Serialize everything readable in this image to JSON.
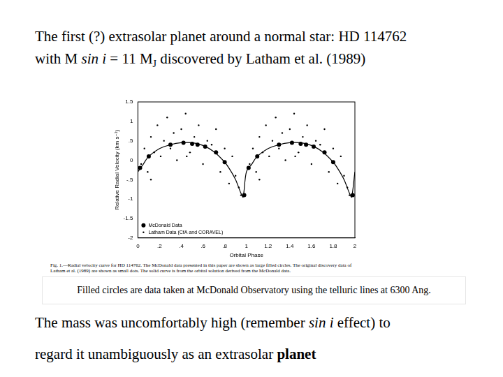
{
  "slide": {
    "title": [
      [
        {
          "text": "The first (?) extrasolar planet around a normal star: HD 114762"
        }
      ],
      [
        {
          "text": "with M "
        },
        {
          "text": "sin i",
          "style": "italic"
        },
        {
          "text": " = 11 M"
        },
        {
          "text": "J",
          "style": "subscript"
        },
        {
          "text": " discovered by Latham et al. (1989)"
        }
      ]
    ],
    "figure_caption": "Fig. 1.—Radial velocity curve for HD 114762. The McDonald data presented in this paper are shown as large filled circles. The original discovery data of Latham et al. (1989) are shown as small dots. The solid curve is from the orbital solution derived from the McDonald data.",
    "note": "Filled circles are data taken at McDonald Observatory using the telluric lines at 6300 Ang.",
    "body": [
      [
        {
          "text": "The mass was uncomfortably high (remember "
        },
        {
          "text": "sin i",
          "style": "italic"
        },
        {
          "text": " effect) to"
        }
      ],
      [
        {
          "text": "regard it unambiguously as an extrasolar "
        },
        {
          "text": "planet",
          "style": "bold"
        }
      ]
    ]
  },
  "chart_data": {
    "type": "scatter",
    "x_label": "Orbital Phase",
    "y_label": "Relative Radial Velocity (km s⁻¹)",
    "xlim": [
      0,
      2
    ],
    "xticks": [
      0,
      {
        "value": 0.2,
        "label": ".2"
      },
      {
        "value": 0.4,
        "label": ".4"
      },
      {
        "value": 0.6,
        "label": ".6"
      },
      {
        "value": 0.8,
        "label": ".8"
      },
      1,
      {
        "value": 1.2,
        "label": "1.2"
      },
      {
        "value": 1.4,
        "label": "1.4"
      },
      {
        "value": 1.6,
        "label": "1.6"
      },
      {
        "value": 1.8,
        "label": "1.8"
      },
      2
    ],
    "ylim": [
      -2,
      1.5
    ],
    "yticks": [
      {
        "value": -2,
        "label": "-2"
      },
      {
        "value": -1.5,
        "label": "-1.5"
      },
      {
        "value": -1,
        "label": "-1"
      },
      {
        "value": -0.5,
        "label": "-.5"
      },
      0,
      {
        "value": 0.5,
        "label": ".5"
      },
      1,
      {
        "value": 1.5,
        "label": "1.5"
      }
    ],
    "grid": false,
    "legend": "lower left",
    "series": [
      {
        "type": "line",
        "color": "#000000",
        "marker": "none",
        "line_style": "solid",
        "x": [
          0,
          0.05,
          0.1,
          0.2,
          0.3,
          0.4,
          0.5,
          0.6,
          0.7,
          0.8,
          0.85,
          0.9,
          0.95,
          0.97,
          1.0,
          1.05,
          1.1,
          1.2,
          1.3,
          1.4,
          1.5,
          1.6,
          1.7,
          1.8,
          1.85,
          1.9,
          1.95,
          1.97,
          2.0
        ],
        "values": [
          -0.3,
          -0.1,
          0.1,
          0.3,
          0.4,
          0.45,
          0.45,
          0.38,
          0.22,
          -0.05,
          -0.25,
          -0.5,
          -0.85,
          -0.95,
          -0.3,
          -0.1,
          0.1,
          0.3,
          0.4,
          0.45,
          0.45,
          0.38,
          0.22,
          -0.05,
          -0.25,
          -0.5,
          -0.85,
          -0.95,
          -0.3
        ]
      },
      {
        "name": "McDonald Data",
        "type": "scatter",
        "color": "#000000",
        "marker": "circle",
        "x": [
          0.02,
          0.1,
          0.3,
          0.42,
          0.5,
          0.55,
          0.62,
          0.72,
          0.8,
          0.98,
          1.02,
          1.1,
          1.3,
          1.42,
          1.5,
          1.55,
          1.62,
          1.72,
          1.8,
          1.98
        ],
        "values": [
          -0.2,
          0.1,
          0.4,
          0.45,
          0.42,
          0.4,
          0.35,
          0.2,
          -0.05,
          -0.9,
          -0.2,
          0.1,
          0.4,
          0.45,
          0.42,
          0.4,
          0.35,
          0.2,
          -0.05,
          -0.9
        ]
      },
      {
        "name": "Latham Data (CfA and CORAVEL)",
        "type": "scatter",
        "color": "#000000",
        "marker": "dot",
        "x": [
          0.03,
          0.06,
          0.09,
          0.12,
          0.15,
          0.18,
          0.21,
          0.24,
          0.27,
          0.3,
          0.33,
          0.36,
          0.4,
          0.44,
          0.48,
          0.52,
          0.56,
          0.6,
          0.64,
          0.68,
          0.72,
          0.76,
          0.8,
          0.84,
          0.87,
          0.9,
          0.93,
          0.95,
          0.12,
          0.45,
          1.03,
          1.06,
          1.09,
          1.12,
          1.15,
          1.18,
          1.21,
          1.24,
          1.27,
          1.3,
          1.33,
          1.36,
          1.4,
          1.44,
          1.48,
          1.52,
          1.56,
          1.6,
          1.64,
          1.68,
          1.72,
          1.76,
          1.8,
          1.84,
          1.87,
          1.9,
          1.93,
          1.95,
          1.12,
          1.45
        ],
        "values": [
          -0.1,
          0.3,
          -0.3,
          0.6,
          0.2,
          0.9,
          0.1,
          0.5,
          1.1,
          0.3,
          0.7,
          0.0,
          0.8,
          1.2,
          0.2,
          0.6,
          0.9,
          -0.1,
          0.5,
          0.4,
          0.8,
          -0.3,
          0.3,
          -0.6,
          0.1,
          -0.4,
          -0.7,
          -0.9,
          -0.5,
          0.1,
          -0.1,
          0.3,
          -0.3,
          0.6,
          0.2,
          0.9,
          0.1,
          0.5,
          1.1,
          0.3,
          0.7,
          0.0,
          0.8,
          1.2,
          0.2,
          0.6,
          0.9,
          -0.1,
          0.5,
          0.4,
          0.8,
          -0.3,
          0.3,
          -0.6,
          0.1,
          -0.4,
          -0.7,
          -0.9,
          -0.5,
          0.1
        ]
      }
    ]
  }
}
